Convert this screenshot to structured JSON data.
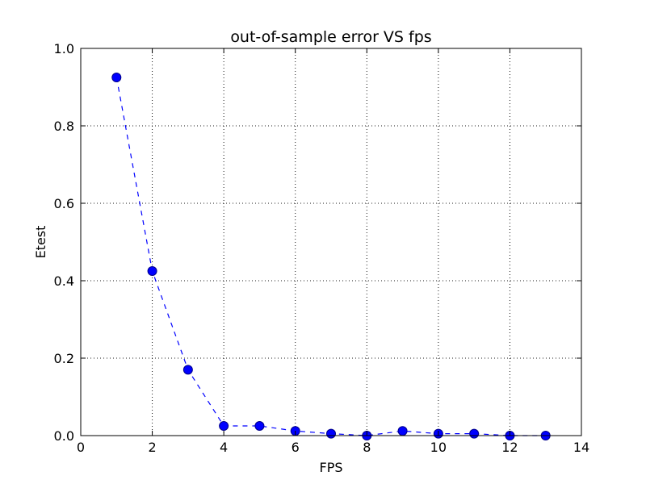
{
  "chart_data": {
    "type": "line",
    "title": "out-of-sample error VS fps",
    "xlabel": "FPS",
    "ylabel": "Etest",
    "xlim": [
      0,
      14
    ],
    "ylim": [
      0.0,
      1.0
    ],
    "xticks": [
      0,
      2,
      4,
      6,
      8,
      10,
      12,
      14
    ],
    "xtick_labels": [
      "0",
      "2",
      "4",
      "6",
      "8",
      "10",
      "12",
      "14"
    ],
    "yticks": [
      0.0,
      0.2,
      0.4,
      0.6,
      0.8,
      1.0
    ],
    "ytick_labels": [
      "0.0",
      "0.2",
      "0.4",
      "0.6",
      "0.8",
      "1.0"
    ],
    "grid": true,
    "series": [
      {
        "x": [
          1,
          2,
          3,
          4,
          5,
          6,
          7,
          8,
          9,
          10,
          11,
          12,
          13
        ],
        "y": [
          0.925,
          0.425,
          0.17,
          0.025,
          0.025,
          0.012,
          0.005,
          0.0,
          0.012,
          0.005,
          0.005,
          0.0,
          0.0
        ],
        "color": "#0000ff",
        "linestyle": "dashed",
        "marker": "circle"
      }
    ]
  }
}
